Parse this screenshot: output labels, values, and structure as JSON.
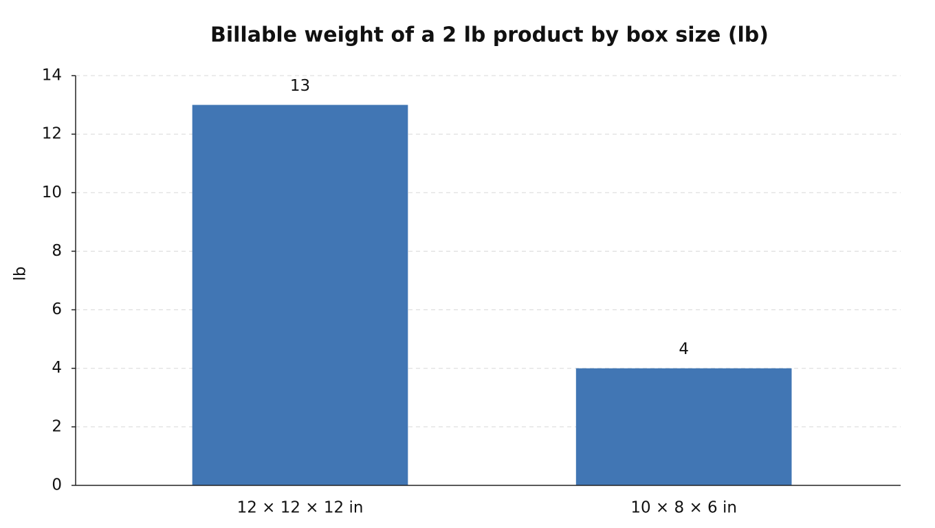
{
  "chart_data": {
    "type": "bar",
    "title": "Billable weight of a 2 lb product by box size (lb)",
    "y_label": "lb",
    "categories": [
      "12 × 12 × 12 in",
      "10 × 8 × 6 in"
    ],
    "values": [
      13,
      4
    ],
    "color": "#4176b4",
    "ylim": [
      0,
      14
    ],
    "yticks": [
      0,
      2,
      4,
      6,
      8,
      10,
      12,
      14
    ],
    "grid": true,
    "data_labels": true
  }
}
